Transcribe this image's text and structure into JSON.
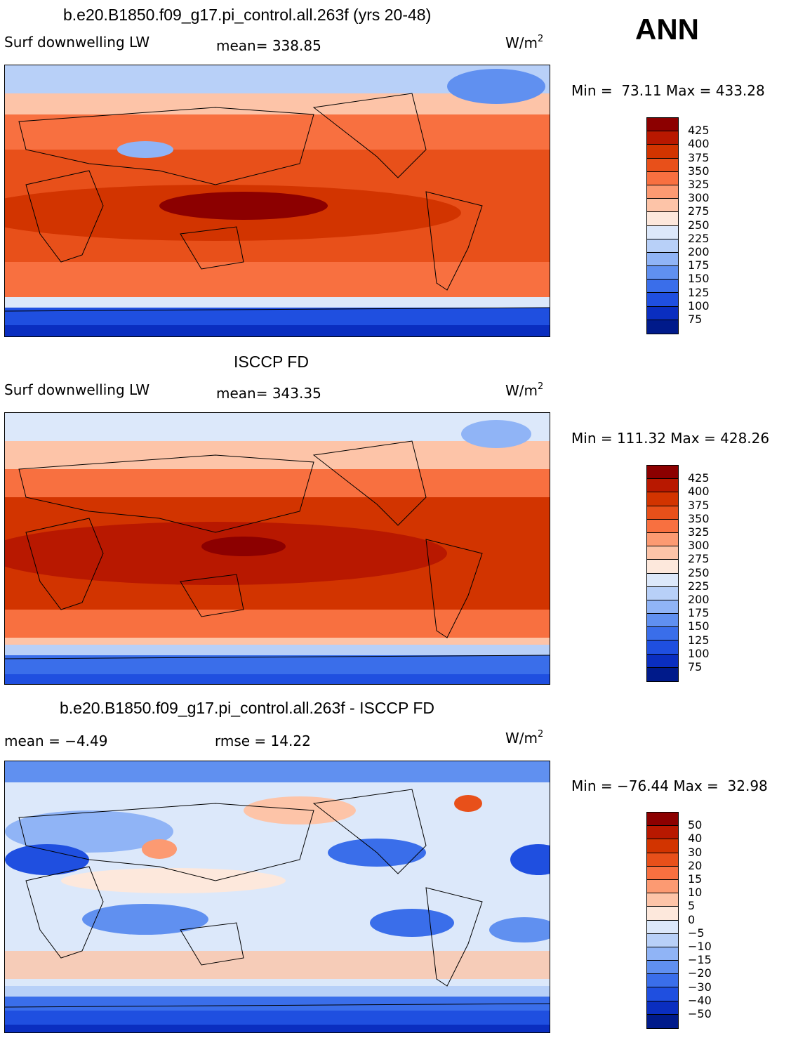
{
  "season": "ANN",
  "panels": [
    {
      "title": "b.e20.B1850.f09_g17.pi_control.all.263f (yrs 20-48)",
      "left_text": "Surf downwelling LW",
      "mid_text": "mean=  338.85",
      "units": "W/m",
      "units_sup": "2",
      "minmax": "Min =  73.11 Max = 433.28",
      "legend": [
        "425",
        "400",
        "375",
        "350",
        "325",
        "300",
        "275",
        "250",
        "225",
        "200",
        "175",
        "150",
        "125",
        "100",
        "75"
      ]
    },
    {
      "title": "ISCCP FD",
      "left_text": "Surf downwelling LW",
      "mid_text": "mean=  343.35",
      "units": "W/m",
      "units_sup": "2",
      "minmax": "Min = 111.32 Max = 428.26",
      "legend": [
        "425",
        "400",
        "375",
        "350",
        "325",
        "300",
        "275",
        "250",
        "225",
        "200",
        "175",
        "150",
        "125",
        "100",
        "75"
      ]
    },
    {
      "title": "b.e20.B1850.f09_g17.pi_control.all.263f - ISCCP FD",
      "left_text": "mean =   −4.49",
      "mid_text": "rmse =   14.22",
      "units": "W/m",
      "units_sup": "2",
      "minmax": "Min = −76.44 Max =  32.98",
      "legend": [
        "50",
        "40",
        "30",
        "20",
        "15",
        "10",
        "5",
        "0",
        "−5",
        "−10",
        "−15",
        "−20",
        "−30",
        "−40",
        "−50"
      ]
    }
  ],
  "colors": {
    "abs_scale": [
      "#8c0000",
      "#b81800",
      "#d23400",
      "#e8501a",
      "#f87040",
      "#fc9a72",
      "#fdc4a8",
      "#fde8dc",
      "#dce8fa",
      "#b8d0f8",
      "#90b4f6",
      "#6090f0",
      "#3a6eea",
      "#1f4fe0",
      "#0a2ec0",
      "#001a8a"
    ],
    "diff_scale": [
      "#8c0000",
      "#b81800",
      "#d23400",
      "#e8501a",
      "#f87040",
      "#fc9a72",
      "#fdc4a8",
      "#fde8dc",
      "#ffffff",
      "#dce8fa",
      "#b8d0f8",
      "#90b4f6",
      "#6090f0",
      "#3a6eea",
      "#1f4fe0",
      "#0a2ec0",
      "#001a8a"
    ]
  }
}
